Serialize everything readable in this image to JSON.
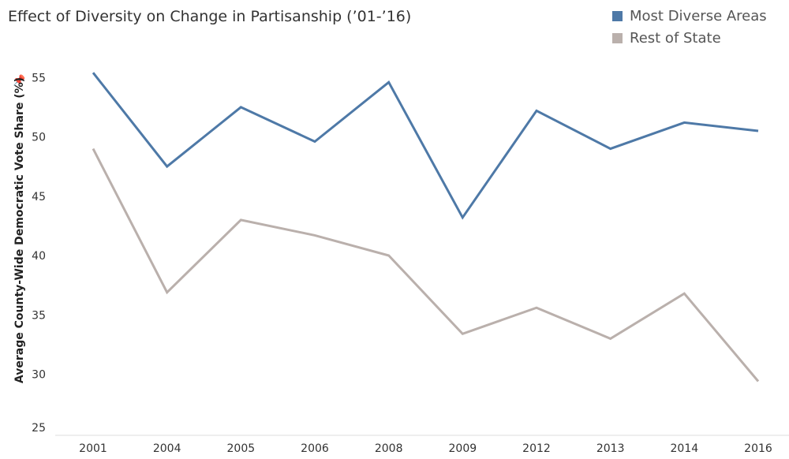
{
  "chart_data": {
    "type": "line",
    "title": "Effect of Diversity on Change in Partisanship (’01-’16)",
    "ylabel": "Average County-Wide Democratic Vote Share (%)",
    "xlabel": "",
    "categories": [
      "2001",
      "2004",
      "2005",
      "2006",
      "2008",
      "2009",
      "2012",
      "2013",
      "2014",
      "2016"
    ],
    "yticks": [
      25,
      30,
      35,
      40,
      45,
      50,
      55
    ],
    "ylim": [
      25,
      57
    ],
    "series": [
      {
        "name": "Most Diverse Areas",
        "color": "#4e79a7",
        "values": [
          55.4,
          47.5,
          52.5,
          49.6,
          54.6,
          43.2,
          52.2,
          49.0,
          51.2,
          50.5
        ]
      },
      {
        "name": "Rest of State",
        "color": "#bab0ac",
        "values": [
          49.0,
          36.9,
          43.0,
          41.7,
          40.0,
          33.4,
          35.6,
          33.0,
          36.8,
          29.4
        ]
      }
    ],
    "grid": false,
    "legend": "top-right"
  }
}
